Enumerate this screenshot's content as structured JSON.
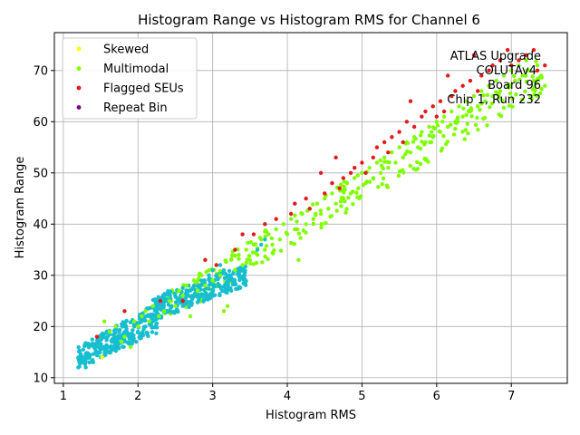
{
  "chart_data": {
    "type": "scatter",
    "title": "Histogram Range vs Histogram RMS for Channel 6",
    "xlabel": "Histogram RMS",
    "ylabel": "Histogram Range",
    "xlim": [
      0.88,
      7.75
    ],
    "ylim": [
      8.9,
      77.4
    ],
    "xticks": [
      1,
      2,
      3,
      4,
      5,
      6,
      7
    ],
    "yticks": [
      10,
      20,
      30,
      40,
      50,
      60,
      70
    ],
    "grid": true,
    "legend_position": "top-left",
    "annotation": [
      "ATLAS Upgrade",
      "COLUTAv4",
      "Board 96",
      "Chip 1, Run 232"
    ],
    "series": [
      {
        "name": "Skewed",
        "color": "#ffff00",
        "points": [
          [
            1.52,
            14
          ]
        ]
      },
      {
        "name": "Multimodal",
        "color": "#7fff00",
        "points": [
          [
            1.55,
            21
          ],
          [
            1.62,
            19
          ],
          [
            1.7,
            20
          ],
          [
            1.78,
            17
          ],
          [
            1.82,
            18
          ],
          [
            1.9,
            16
          ],
          [
            1.95,
            21
          ],
          [
            2.0,
            20
          ],
          [
            2.05,
            22
          ],
          [
            2.1,
            23
          ],
          [
            2.15,
            21
          ],
          [
            2.2,
            24
          ],
          [
            2.28,
            22
          ],
          [
            2.35,
            23
          ],
          [
            2.42,
            25
          ],
          [
            2.5,
            24
          ],
          [
            2.55,
            27
          ],
          [
            2.6,
            26
          ],
          [
            2.65,
            28
          ],
          [
            2.7,
            22
          ],
          [
            2.75,
            29
          ],
          [
            2.8,
            27
          ],
          [
            2.85,
            30
          ],
          [
            2.9,
            28
          ],
          [
            2.95,
            31
          ],
          [
            3.0,
            29
          ],
          [
            3.05,
            32
          ],
          [
            3.1,
            30
          ],
          [
            3.15,
            23
          ],
          [
            3.2,
            24
          ],
          [
            3.25,
            33
          ],
          [
            3.3,
            31
          ],
          [
            3.35,
            34
          ],
          [
            3.4,
            32
          ],
          [
            3.45,
            35
          ],
          [
            3.5,
            33
          ],
          [
            3.55,
            36
          ],
          [
            3.6,
            34
          ],
          [
            3.65,
            37
          ],
          [
            3.7,
            35
          ],
          [
            3.75,
            38
          ],
          [
            3.8,
            36
          ],
          [
            3.85,
            39
          ],
          [
            3.9,
            37
          ],
          [
            3.95,
            40
          ],
          [
            4.0,
            38
          ],
          [
            4.05,
            41
          ],
          [
            4.1,
            39
          ],
          [
            4.15,
            33
          ],
          [
            4.2,
            42
          ],
          [
            4.25,
            40
          ],
          [
            4.3,
            43
          ],
          [
            4.35,
            41
          ],
          [
            4.4,
            44
          ],
          [
            4.45,
            42
          ],
          [
            4.5,
            45
          ],
          [
            4.55,
            43
          ],
          [
            4.6,
            46
          ],
          [
            4.65,
            44
          ],
          [
            4.7,
            47
          ],
          [
            4.75,
            45
          ],
          [
            4.8,
            48
          ],
          [
            4.85,
            46
          ],
          [
            4.9,
            49
          ],
          [
            4.95,
            47
          ],
          [
            5.0,
            50
          ],
          [
            5.05,
            48
          ],
          [
            5.1,
            51
          ],
          [
            5.15,
            49
          ],
          [
            5.2,
            52
          ],
          [
            5.25,
            50
          ],
          [
            5.3,
            53
          ],
          [
            5.35,
            51
          ],
          [
            5.4,
            54
          ],
          [
            5.45,
            52
          ],
          [
            5.5,
            55
          ],
          [
            5.55,
            53
          ],
          [
            5.6,
            56
          ],
          [
            5.65,
            54
          ],
          [
            5.7,
            57
          ],
          [
            5.75,
            55
          ],
          [
            5.8,
            58
          ],
          [
            5.85,
            56
          ],
          [
            5.9,
            59
          ],
          [
            5.95,
            57
          ],
          [
            6.0,
            60
          ],
          [
            6.05,
            58
          ],
          [
            6.1,
            61
          ],
          [
            6.15,
            59
          ],
          [
            6.2,
            62
          ],
          [
            6.25,
            60
          ],
          [
            6.3,
            63
          ],
          [
            6.35,
            61
          ],
          [
            6.4,
            64
          ],
          [
            6.45,
            62
          ],
          [
            6.5,
            65
          ],
          [
            6.55,
            63
          ],
          [
            6.6,
            66
          ],
          [
            6.65,
            64
          ],
          [
            6.7,
            67
          ],
          [
            6.75,
            65
          ],
          [
            6.8,
            68
          ],
          [
            6.85,
            66
          ],
          [
            6.9,
            69
          ],
          [
            6.95,
            67
          ],
          [
            7.0,
            70
          ],
          [
            7.05,
            68
          ],
          [
            7.1,
            71
          ],
          [
            7.15,
            69
          ],
          [
            7.2,
            72
          ],
          [
            7.25,
            70
          ],
          [
            7.3,
            68
          ],
          [
            7.35,
            71
          ],
          [
            7.4,
            69
          ],
          [
            7.45,
            67
          ]
        ]
      },
      {
        "name": "Flagged SEUs",
        "color": "#e41a1c",
        "points": [
          [
            1.45,
            18
          ],
          [
            1.82,
            23
          ],
          [
            2.3,
            25
          ],
          [
            2.6,
            25
          ],
          [
            2.9,
            33
          ],
          [
            3.05,
            32
          ],
          [
            3.3,
            35
          ],
          [
            3.4,
            38
          ],
          [
            3.55,
            38
          ],
          [
            3.7,
            40
          ],
          [
            3.85,
            41
          ],
          [
            4.05,
            42
          ],
          [
            4.1,
            44
          ],
          [
            4.25,
            45
          ],
          [
            4.3,
            43
          ],
          [
            4.45,
            50
          ],
          [
            4.5,
            46
          ],
          [
            4.6,
            48
          ],
          [
            4.65,
            53
          ],
          [
            4.7,
            47
          ],
          [
            4.75,
            49
          ],
          [
            4.85,
            50
          ],
          [
            4.9,
            51
          ],
          [
            5.0,
            52
          ],
          [
            5.05,
            50
          ],
          [
            5.15,
            53
          ],
          [
            5.2,
            55
          ],
          [
            5.3,
            56
          ],
          [
            5.35,
            54
          ],
          [
            5.4,
            57
          ],
          [
            5.5,
            58
          ],
          [
            5.55,
            56
          ],
          [
            5.6,
            60
          ],
          [
            5.65,
            64
          ],
          [
            5.7,
            59
          ],
          [
            5.8,
            61
          ],
          [
            5.85,
            62
          ],
          [
            5.95,
            63
          ],
          [
            6.0,
            61
          ],
          [
            6.05,
            64
          ],
          [
            6.1,
            62
          ],
          [
            6.15,
            69
          ],
          [
            6.2,
            65
          ],
          [
            6.25,
            66
          ],
          [
            6.35,
            67
          ],
          [
            6.45,
            68
          ],
          [
            6.5,
            73
          ],
          [
            6.55,
            66
          ],
          [
            6.6,
            69
          ],
          [
            6.7,
            70
          ],
          [
            6.75,
            71
          ],
          [
            6.85,
            72
          ],
          [
            6.95,
            74
          ],
          [
            7.0,
            71
          ],
          [
            7.1,
            72
          ],
          [
            7.2,
            73
          ],
          [
            7.3,
            74
          ],
          [
            7.35,
            70
          ],
          [
            7.45,
            71
          ]
        ]
      },
      {
        "name": "Repeat Bin",
        "color": "#800080",
        "points": []
      },
      {
        "name": "",
        "color": "#17becf",
        "points": [
          [
            1.2,
            12
          ],
          [
            1.25,
            13
          ],
          [
            1.3,
            12
          ],
          [
            1.35,
            14
          ],
          [
            1.4,
            13
          ],
          [
            1.45,
            15
          ],
          [
            1.5,
            14
          ],
          [
            1.55,
            16
          ],
          [
            1.6,
            15
          ],
          [
            1.65,
            17
          ],
          [
            1.7,
            16
          ],
          [
            1.75,
            18
          ],
          [
            1.8,
            17
          ],
          [
            1.85,
            19
          ],
          [
            1.9,
            18
          ],
          [
            1.95,
            20
          ],
          [
            2.0,
            19
          ],
          [
            2.05,
            21
          ],
          [
            2.1,
            20
          ],
          [
            2.15,
            22
          ],
          [
            2.2,
            21
          ],
          [
            2.25,
            23
          ],
          [
            2.3,
            24
          ],
          [
            2.35,
            26
          ],
          [
            2.4,
            25
          ],
          [
            2.45,
            24
          ],
          [
            2.5,
            26
          ],
          [
            2.55,
            25
          ],
          [
            2.6,
            24
          ],
          [
            2.65,
            26
          ],
          [
            2.7,
            27
          ],
          [
            2.75,
            28
          ],
          [
            2.8,
            27
          ],
          [
            2.85,
            29
          ],
          [
            2.9,
            28
          ],
          [
            2.95,
            30
          ],
          [
            3.0,
            31
          ],
          [
            3.05,
            30
          ],
          [
            3.1,
            32
          ],
          [
            3.15,
            31
          ],
          [
            3.2,
            30
          ],
          [
            3.25,
            29
          ],
          [
            3.3,
            31
          ],
          [
            3.35,
            30
          ],
          [
            3.4,
            31
          ],
          [
            3.6,
            35
          ],
          [
            3.65,
            36
          ],
          [
            3.7,
            37
          ]
        ]
      }
    ]
  },
  "fill_bands": [
    {
      "color": "#17becf",
      "x0": 1.2,
      "x1": 2.3,
      "y0_start": 12,
      "y0_end": 19,
      "y1_start": 16,
      "y1_end": 25
    },
    {
      "color": "#7fff00",
      "x0": 2.3,
      "x1": 7.45,
      "y0_start": 20,
      "y0_end": 66,
      "y1_start": 26,
      "y1_end": 73
    },
    {
      "color": "#17becf",
      "x0": 2.2,
      "x1": 3.45,
      "y0_start": 21,
      "y0_end": 28,
      "y1_start": 26,
      "y1_end": 32
    }
  ]
}
